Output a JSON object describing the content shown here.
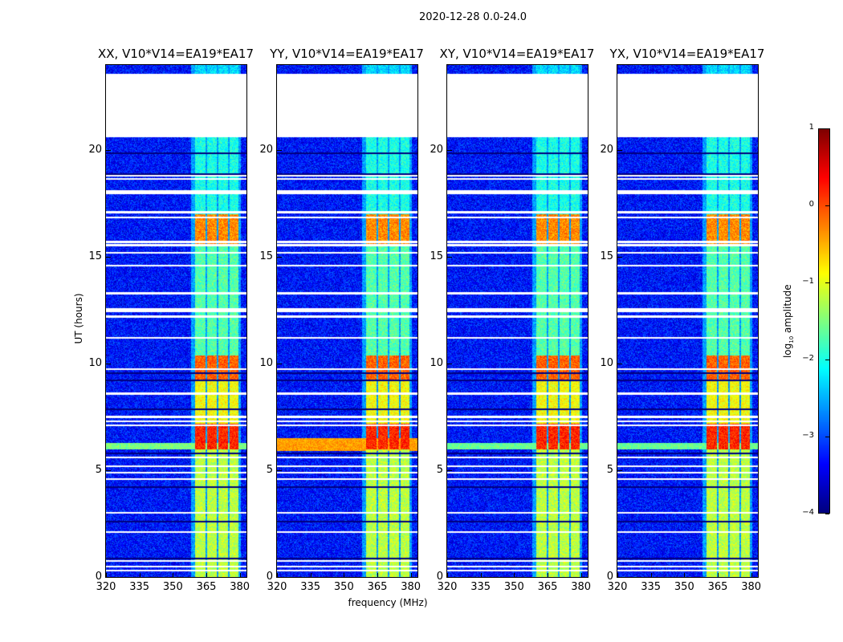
{
  "suptitle": "2020-12-28 0.0-24.0",
  "xlabel": "frequency (MHz)",
  "ylabel": "UT (hours)",
  "colorbar": {
    "label_main": "log",
    "label_sub": "10",
    "label_rest": " amplitude",
    "range": [
      -4,
      1
    ],
    "ticks": [
      "1",
      "0",
      "−1",
      "−2",
      "−3",
      "−4"
    ],
    "tick_values": [
      1,
      0,
      -1,
      -2,
      -3,
      -4
    ],
    "colormap": "jet"
  },
  "chart_data": [
    {
      "type": "heatmap",
      "title": "XX, V10*V14=EA19*EA17",
      "xlim": [
        320,
        383
      ],
      "ylim": [
        0,
        24
      ],
      "xticks": [
        "320",
        "335",
        "350",
        "365",
        "380"
      ],
      "xtick_values": [
        320,
        335,
        350,
        365,
        380
      ],
      "yticks": [
        "0",
        "5",
        "10",
        "15",
        "20"
      ],
      "ytick_values": [
        0,
        5,
        10,
        15,
        20
      ],
      "wideband_event": {
        "hours": [
          6.0,
          6.3
        ],
        "level": -1.5
      }
    },
    {
      "type": "heatmap",
      "title": "YY, V10*V14=EA19*EA17",
      "xlim": [
        320,
        383
      ],
      "ylim": [
        0,
        24
      ],
      "xticks": [
        "320",
        "335",
        "350",
        "365",
        "380"
      ],
      "xtick_values": [
        320,
        335,
        350,
        365,
        380
      ],
      "yticks": [
        "0",
        "5",
        "10",
        "15",
        "20"
      ],
      "ytick_values": [
        0,
        5,
        10,
        15,
        20
      ],
      "wideband_event": {
        "hours": [
          5.9,
          6.5
        ],
        "level": -0.4
      }
    },
    {
      "type": "heatmap",
      "title": "XY, V10*V14=EA19*EA17",
      "xlim": [
        320,
        383
      ],
      "ylim": [
        0,
        24
      ],
      "xticks": [
        "320",
        "335",
        "350",
        "365",
        "380"
      ],
      "xtick_values": [
        320,
        335,
        350,
        365,
        380
      ],
      "yticks": [
        "0",
        "5",
        "10",
        "15",
        "20"
      ],
      "ytick_values": [
        0,
        5,
        10,
        15,
        20
      ],
      "wideband_event": {
        "hours": [
          6.0,
          6.3
        ],
        "level": -1.6
      }
    },
    {
      "type": "heatmap",
      "title": "YX, V10*V14=EA19*EA17",
      "xlim": [
        320,
        383
      ],
      "ylim": [
        0,
        24
      ],
      "xticks": [
        "320",
        "335",
        "350",
        "365",
        "380"
      ],
      "xtick_values": [
        320,
        335,
        350,
        365,
        380
      ],
      "yticks": [
        "0",
        "5",
        "10",
        "15",
        "20"
      ],
      "ytick_values": [
        0,
        5,
        10,
        15,
        20
      ],
      "wideband_event": {
        "hours": [
          6.0,
          6.3
        ],
        "level": -1.6
      }
    }
  ],
  "common": {
    "background_level": -3.3,
    "no_data_hours": [
      20.6,
      23.6
    ],
    "flagged_hours": [
      18.8,
      18.65,
      18.1,
      18.0,
      17.1,
      16.85,
      15.7,
      15.55,
      15.2,
      14.6,
      13.3,
      12.55,
      12.45,
      12.2,
      11.2,
      9.75,
      8.6,
      7.5,
      7.3,
      7.1,
      5.6,
      5.2,
      4.9,
      4.6,
      3.0,
      2.1,
      0.75,
      0.5,
      0.3
    ],
    "low_hours": [
      19.85,
      18.9,
      12.5,
      9.55,
      9.2,
      7.85,
      5.8,
      4.2,
      2.6,
      0.85
    ],
    "rfi_channels_mhz": [
      [
        360,
        364.6
      ],
      [
        365.4,
        369.6
      ],
      [
        370.4,
        374.7
      ],
      [
        375.4,
        379.3
      ]
    ],
    "rfi_levels": [
      {
        "hours": [
          0,
          6
        ],
        "level": -1.2
      },
      {
        "hours": [
          6,
          7.2
        ],
        "level": 0.2
      },
      {
        "hours": [
          7.2,
          9.2
        ],
        "level": -0.9
      },
      {
        "hours": [
          9.2,
          10.4
        ],
        "level": -0.1
      },
      {
        "hours": [
          10.4,
          15.6
        ],
        "level": -1.7
      },
      {
        "hours": [
          15.6,
          17.0
        ],
        "level": -0.3
      },
      {
        "hours": [
          17.0,
          24
        ],
        "level": -2.0
      }
    ]
  }
}
